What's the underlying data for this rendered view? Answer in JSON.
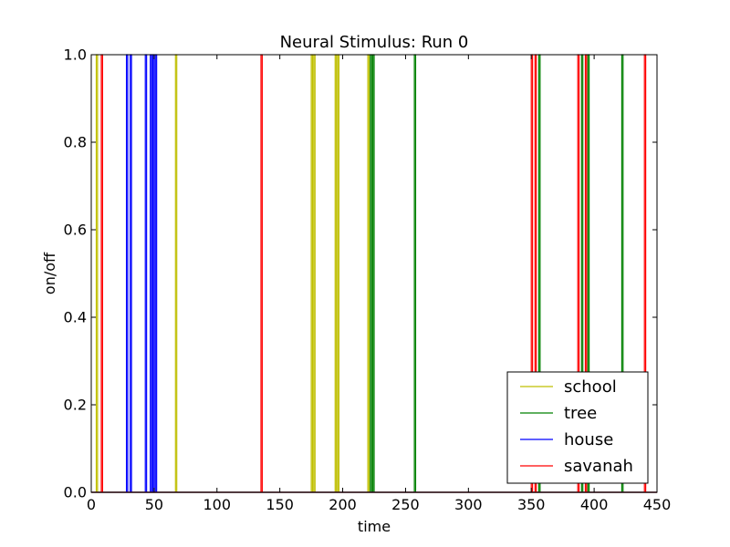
{
  "chart_data": {
    "type": "line",
    "title": "Neural Stimulus: Run 0",
    "xlabel": "time",
    "ylabel": "on/off",
    "xlim": [
      0,
      450
    ],
    "ylim": [
      0.0,
      1.0
    ],
    "x_ticks": [
      "0",
      "50",
      "100",
      "150",
      "200",
      "250",
      "300",
      "350",
      "400",
      "450"
    ],
    "y_ticks": [
      "0.0",
      "0.2",
      "0.4",
      "0.6",
      "0.8",
      "1.0"
    ],
    "grid": false,
    "legend_position": "lower-right",
    "series": [
      {
        "name": "school",
        "color": "#bfbf00",
        "pulses": [
          [
            4,
            5
          ],
          [
            67,
            68
          ],
          [
            175,
            176
          ],
          [
            177,
            178
          ],
          [
            194,
            195
          ],
          [
            196,
            197
          ],
          [
            220,
            221
          ]
        ]
      },
      {
        "name": "tree",
        "color": "#008000",
        "pulses": [
          [
            222,
            223
          ],
          [
            224,
            225
          ],
          [
            257,
            258
          ],
          [
            356,
            357
          ],
          [
            390,
            391
          ],
          [
            395,
            396
          ],
          [
            422,
            423
          ]
        ]
      },
      {
        "name": "house",
        "color": "#0000ff",
        "pulses": [
          [
            28,
            29
          ],
          [
            31,
            32
          ],
          [
            43,
            44
          ],
          [
            47,
            48
          ],
          [
            49,
            50
          ],
          [
            51,
            52
          ]
        ]
      },
      {
        "name": "savanah",
        "color": "#ff0000",
        "pulses": [
          [
            8,
            9
          ],
          [
            135,
            136
          ],
          [
            350,
            351
          ],
          [
            353,
            354
          ],
          [
            387,
            388
          ],
          [
            393,
            394
          ],
          [
            440,
            441
          ]
        ]
      }
    ]
  }
}
